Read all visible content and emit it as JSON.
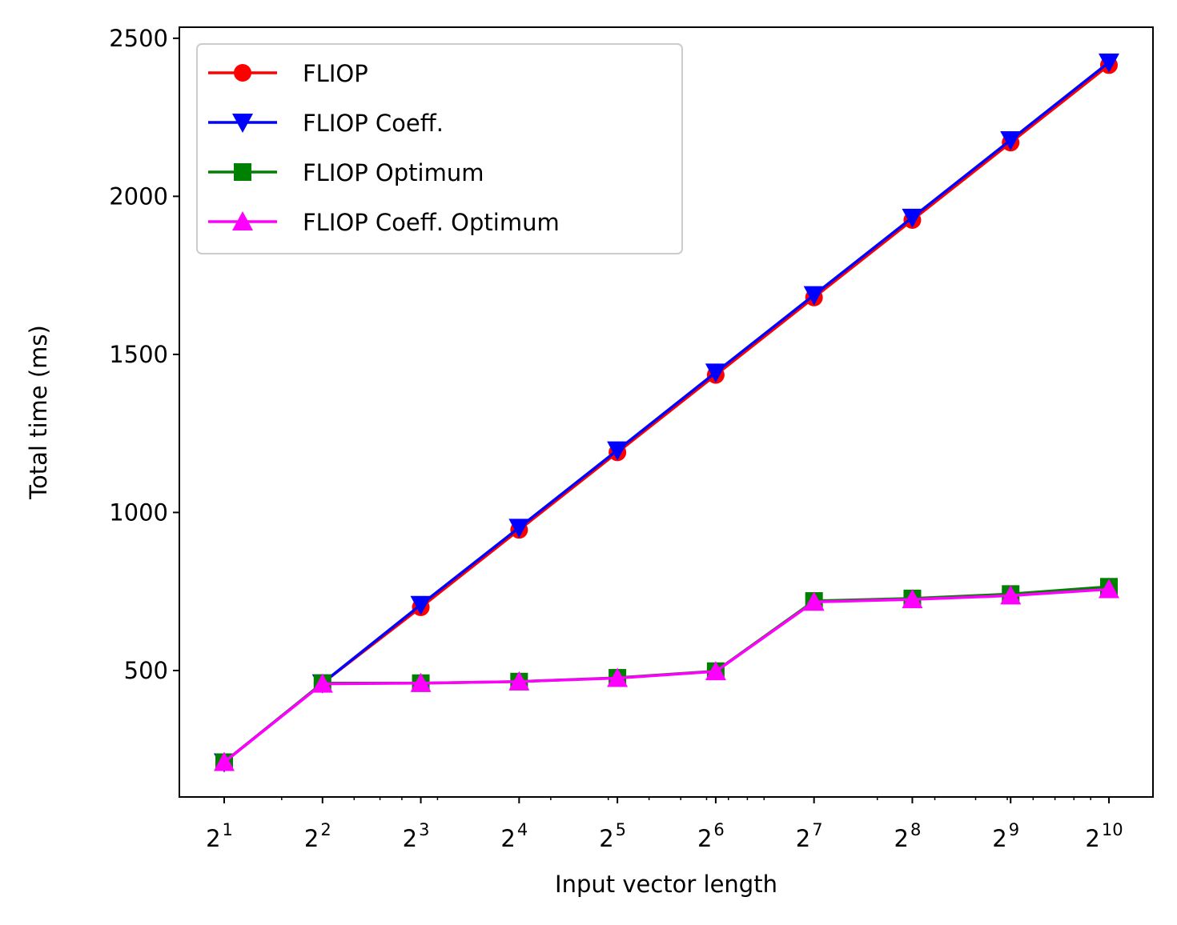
{
  "chart_data": {
    "type": "line",
    "xlabel": "Input vector length",
    "ylabel": "Total time (ms)",
    "x_scale": "log2",
    "x": [
      2,
      4,
      8,
      16,
      32,
      64,
      128,
      256,
      512,
      1024
    ],
    "x_tick_labels": [
      {
        "base": "2",
        "exp": "1"
      },
      {
        "base": "2",
        "exp": "2"
      },
      {
        "base": "2",
        "exp": "3"
      },
      {
        "base": "2",
        "exp": "4"
      },
      {
        "base": "2",
        "exp": "5"
      },
      {
        "base": "2",
        "exp": "6"
      },
      {
        "base": "2",
        "exp": "7"
      },
      {
        "base": "2",
        "exp": "8"
      },
      {
        "base": "2",
        "exp": "9"
      },
      {
        "base": "2",
        "exp": "10"
      }
    ],
    "ylim": [
      100,
      2535
    ],
    "y_ticks": [
      500,
      1000,
      1500,
      2000,
      2500
    ],
    "legend_position": "upper-left",
    "series": [
      {
        "name": "FLIOP",
        "color": "#ff0000",
        "marker": "circle",
        "values": [
          210,
          460,
          700,
          945,
          1190,
          1435,
          1680,
          1925,
          2170,
          2415
        ]
      },
      {
        "name": "FLIOP Coeff.",
        "color": "#0000ff",
        "marker": "triangle-down",
        "values": [
          210,
          460,
          708,
          952,
          1197,
          1443,
          1688,
          1933,
          2178,
          2424
        ]
      },
      {
        "name": "FLIOP Optimum",
        "color": "#008000",
        "marker": "square",
        "values": [
          210,
          460,
          460,
          465,
          477,
          498,
          720,
          728,
          742,
          765
        ]
      },
      {
        "name": "FLIOP Coeff. Optimum",
        "color": "#ff00ff",
        "marker": "triangle-up",
        "values": [
          210,
          458,
          460,
          465,
          476,
          497,
          717,
          725,
          737,
          757
        ]
      }
    ]
  }
}
